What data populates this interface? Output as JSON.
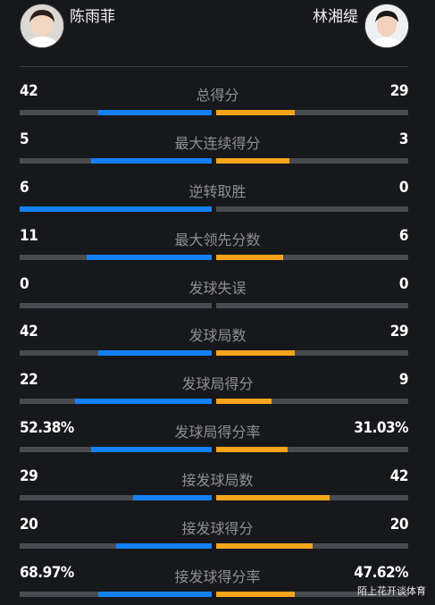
{
  "players": {
    "left": {
      "name": "陈雨菲",
      "color": "#1580f5"
    },
    "right": {
      "name": "林湘缇",
      "color": "#f5a51c"
    }
  },
  "stats": [
    {
      "label": "总得分",
      "left": "42",
      "right": "29",
      "left_share": 0.59,
      "right_share": 0.41
    },
    {
      "label": "最大连续得分",
      "left": "5",
      "right": "3",
      "left_share": 0.63,
      "right_share": 0.38
    },
    {
      "label": "逆转取胜",
      "left": "6",
      "right": "0",
      "left_share": 1.0,
      "right_share": 0.0
    },
    {
      "label": "最大领先分数",
      "left": "11",
      "right": "6",
      "left_share": 0.65,
      "right_share": 0.35
    },
    {
      "label": "发球失误",
      "left": "0",
      "right": "0",
      "left_share": 0.0,
      "right_share": 0.0
    },
    {
      "label": "发球局数",
      "left": "42",
      "right": "29",
      "left_share": 0.59,
      "right_share": 0.41
    },
    {
      "label": "发球局得分",
      "left": "22",
      "right": "9",
      "left_share": 0.71,
      "right_share": 0.29
    },
    {
      "label": "发球局得分率",
      "left": "52.38%",
      "right": "31.03%",
      "left_share": 0.63,
      "right_share": 0.37
    },
    {
      "label": "接发球局数",
      "left": "29",
      "right": "42",
      "left_share": 0.41,
      "right_share": 0.59
    },
    {
      "label": "接发球得分",
      "left": "20",
      "right": "20",
      "left_share": 0.5,
      "right_share": 0.5
    },
    {
      "label": "接发球得分率",
      "left": "68.97%",
      "right": "47.62%",
      "left_share": 0.59,
      "right_share": 0.41
    }
  ],
  "watermark": "陌上花开谈体育"
}
